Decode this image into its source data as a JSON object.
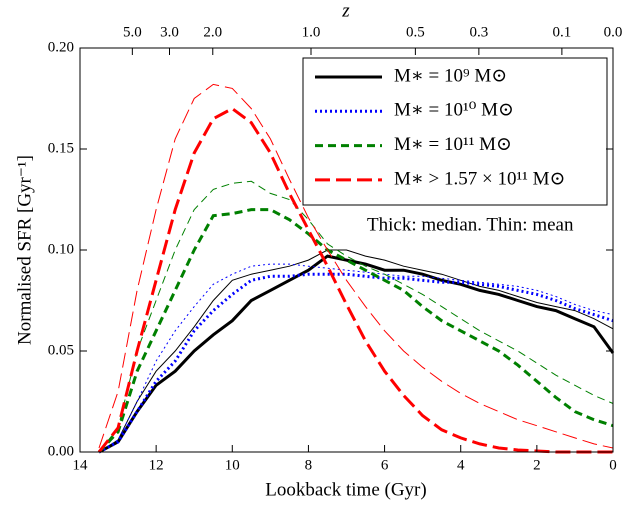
{
  "chart_data": {
    "type": "line",
    "xlabel": "Lookback time (Gyr)",
    "ylabel": "Normalised SFR [Gyr⁻¹]",
    "x2label": "z",
    "annotation": "Thick: median. Thin: mean",
    "xlim": [
      14,
      0
    ],
    "xticks": [
      14,
      12,
      10,
      8,
      6,
      4,
      2,
      0
    ],
    "ylim": [
      0,
      0.2
    ],
    "yticks": [
      {
        "value": 0,
        "label": "0.00"
      },
      {
        "value": 0.05,
        "label": "0.05"
      },
      {
        "value": 0.1,
        "label": "0.10"
      },
      {
        "value": 0.15,
        "label": "0.15"
      },
      {
        "value": 0.2,
        "label": "0.20"
      }
    ],
    "x2ticks": [
      {
        "value": 5,
        "label": "5.0"
      },
      {
        "value": 3,
        "label": "3.0"
      },
      {
        "value": 2,
        "label": "2.0"
      },
      {
        "value": 1,
        "label": "1.0"
      },
      0.5,
      0.3,
      0.1,
      {
        "value": 0,
        "label": "0.0"
      }
    ],
    "legend": "upper right",
    "x": [
      13.5,
      13,
      12.5,
      12,
      11.5,
      11,
      10.5,
      10,
      9.5,
      9,
      8.5,
      8,
      7.5,
      7,
      6.5,
      6,
      5.5,
      5,
      4.5,
      4,
      3.5,
      3,
      2.5,
      2,
      1.5,
      1,
      0.5,
      0
    ],
    "series": [
      {
        "name": "M∗ = 10⁹ M⊙",
        "color": "#000000",
        "linestyle": "solid",
        "values": [
          0,
          0.005,
          0.02,
          0.033,
          0.04,
          0.05,
          0.058,
          0.065,
          0.075,
          0.08,
          0.085,
          0.09,
          0.097,
          0.095,
          0.093,
          0.09,
          0.09,
          0.088,
          0.085,
          0.083,
          0.08,
          0.078,
          0.075,
          0.072,
          0.07,
          0.066,
          0.062,
          0.049
        ],
        "mean_values": [
          0,
          0.006,
          0.025,
          0.04,
          0.05,
          0.062,
          0.075,
          0.085,
          0.088,
          0.09,
          0.092,
          0.095,
          0.1,
          0.1,
          0.097,
          0.095,
          0.092,
          0.09,
          0.088,
          0.085,
          0.082,
          0.08,
          0.077,
          0.074,
          0.072,
          0.07,
          0.066,
          0.061
        ]
      },
      {
        "name": "M∗ = 10¹⁰ M⊙",
        "color": "#0000ff",
        "linestyle": "dotted",
        "values": [
          0,
          0.005,
          0.02,
          0.035,
          0.045,
          0.06,
          0.07,
          0.078,
          0.085,
          0.087,
          0.087,
          0.088,
          0.088,
          0.088,
          0.087,
          0.086,
          0.086,
          0.085,
          0.084,
          0.084,
          0.083,
          0.082,
          0.08,
          0.078,
          0.075,
          0.071,
          0.068,
          0.065
        ],
        "mean_values": [
          0,
          0.006,
          0.025,
          0.045,
          0.06,
          0.072,
          0.083,
          0.088,
          0.092,
          0.093,
          0.093,
          0.092,
          0.091,
          0.09,
          0.089,
          0.088,
          0.087,
          0.087,
          0.086,
          0.085,
          0.084,
          0.083,
          0.082,
          0.08,
          0.077,
          0.073,
          0.07,
          0.068
        ]
      },
      {
        "name": "M∗ = 10¹¹ M⊙",
        "color": "#008000",
        "linestyle": "dashed",
        "values": [
          0,
          0.01,
          0.04,
          0.06,
          0.08,
          0.1,
          0.117,
          0.118,
          0.12,
          0.12,
          0.115,
          0.108,
          0.1,
          0.095,
          0.09,
          0.085,
          0.08,
          0.072,
          0.065,
          0.06,
          0.055,
          0.05,
          0.043,
          0.035,
          0.027,
          0.02,
          0.016,
          0.013
        ],
        "mean_values": [
          0,
          0.012,
          0.05,
          0.075,
          0.1,
          0.12,
          0.13,
          0.133,
          0.134,
          0.128,
          0.125,
          0.115,
          0.103,
          0.097,
          0.092,
          0.088,
          0.083,
          0.078,
          0.072,
          0.066,
          0.06,
          0.055,
          0.05,
          0.044,
          0.038,
          0.033,
          0.028,
          0.024
        ]
      },
      {
        "name": "M∗ > 1.57 × 10¹¹ M⊙",
        "color": "#ff0000",
        "linestyle": "longdash",
        "values": [
          0,
          0.012,
          0.05,
          0.085,
          0.12,
          0.148,
          0.165,
          0.17,
          0.163,
          0.148,
          0.128,
          0.11,
          0.092,
          0.073,
          0.055,
          0.04,
          0.028,
          0.018,
          0.011,
          0.007,
          0.004,
          0.002,
          0.001,
          0.0005,
          0,
          0,
          0,
          0
        ],
        "mean_values": [
          0.002,
          0.03,
          0.08,
          0.12,
          0.155,
          0.175,
          0.182,
          0.18,
          0.17,
          0.155,
          0.135,
          0.116,
          0.1,
          0.085,
          0.072,
          0.06,
          0.05,
          0.042,
          0.035,
          0.029,
          0.024,
          0.02,
          0.016,
          0.013,
          0.01,
          0.007,
          0.004,
          0.002
        ]
      }
    ]
  }
}
